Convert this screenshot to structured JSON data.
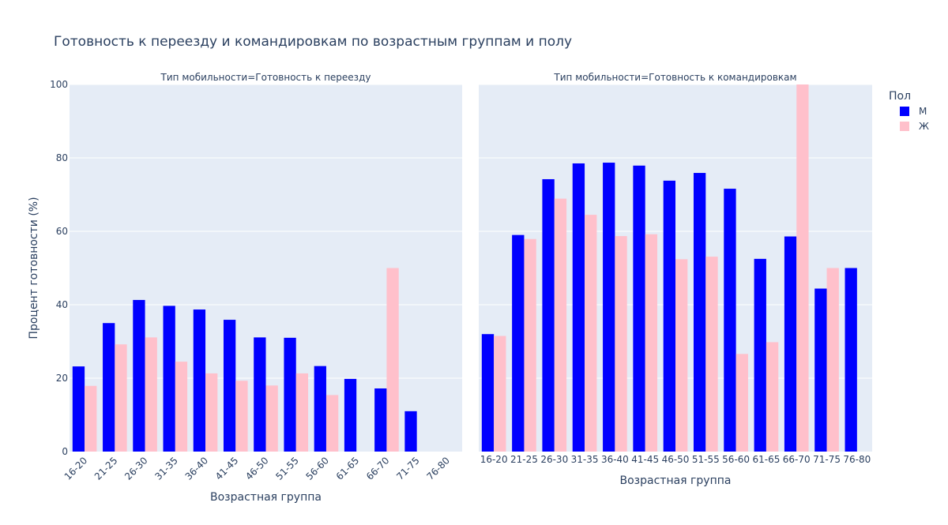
{
  "chart_data": {
    "type": "bar",
    "title": "Готовность к переезду и командировкам по возрастным группам и полу",
    "ylabel": "Процент готовности (%)",
    "xlabel": "Возрастная группа",
    "ylim": [
      0,
      100
    ],
    "yticks": [
      "0",
      "20",
      "40",
      "60",
      "80",
      "100"
    ],
    "grid": true,
    "legend": {
      "title": "Пол",
      "placement": "right",
      "items": [
        {
          "label": "М",
          "color": "#0000ff"
        },
        {
          "label": "Ж",
          "color": "#ffc0cb"
        }
      ]
    },
    "categories": [
      "16-20",
      "21-25",
      "26-30",
      "31-35",
      "36-40",
      "41-45",
      "46-50",
      "51-55",
      "56-60",
      "61-65",
      "66-70",
      "71-75",
      "76-80"
    ],
    "panels": [
      {
        "subtitle": "Тип мобильности=Готовность к переезду",
        "series": [
          {
            "name": "М",
            "color": "#0000ff",
            "values": [
              23.2,
              35.0,
              41.3,
              39.7,
              38.7,
              35.9,
              31.1,
              31.0,
              23.3,
              19.8,
              17.2,
              11.0,
              null
            ]
          },
          {
            "name": "Ж",
            "color": "#ffc0cb",
            "values": [
              17.9,
              29.2,
              31.1,
              24.5,
              21.3,
              19.3,
              18.0,
              21.3,
              15.4,
              null,
              50.0,
              null,
              null
            ]
          }
        ]
      },
      {
        "subtitle": "Тип мобильности=Готовность к командировкам",
        "series": [
          {
            "name": "М",
            "color": "#0000ff",
            "values": [
              32.0,
              59.0,
              74.2,
              78.5,
              78.7,
              77.9,
              73.8,
              75.9,
              71.6,
              52.5,
              58.6,
              44.4,
              50.0
            ]
          },
          {
            "name": "Ж",
            "color": "#ffc0cb",
            "values": [
              31.5,
              57.9,
              68.9,
              64.5,
              58.7,
              59.2,
              52.4,
              53.1,
              26.6,
              29.8,
              100.0,
              50.0,
              null
            ]
          }
        ]
      }
    ]
  }
}
